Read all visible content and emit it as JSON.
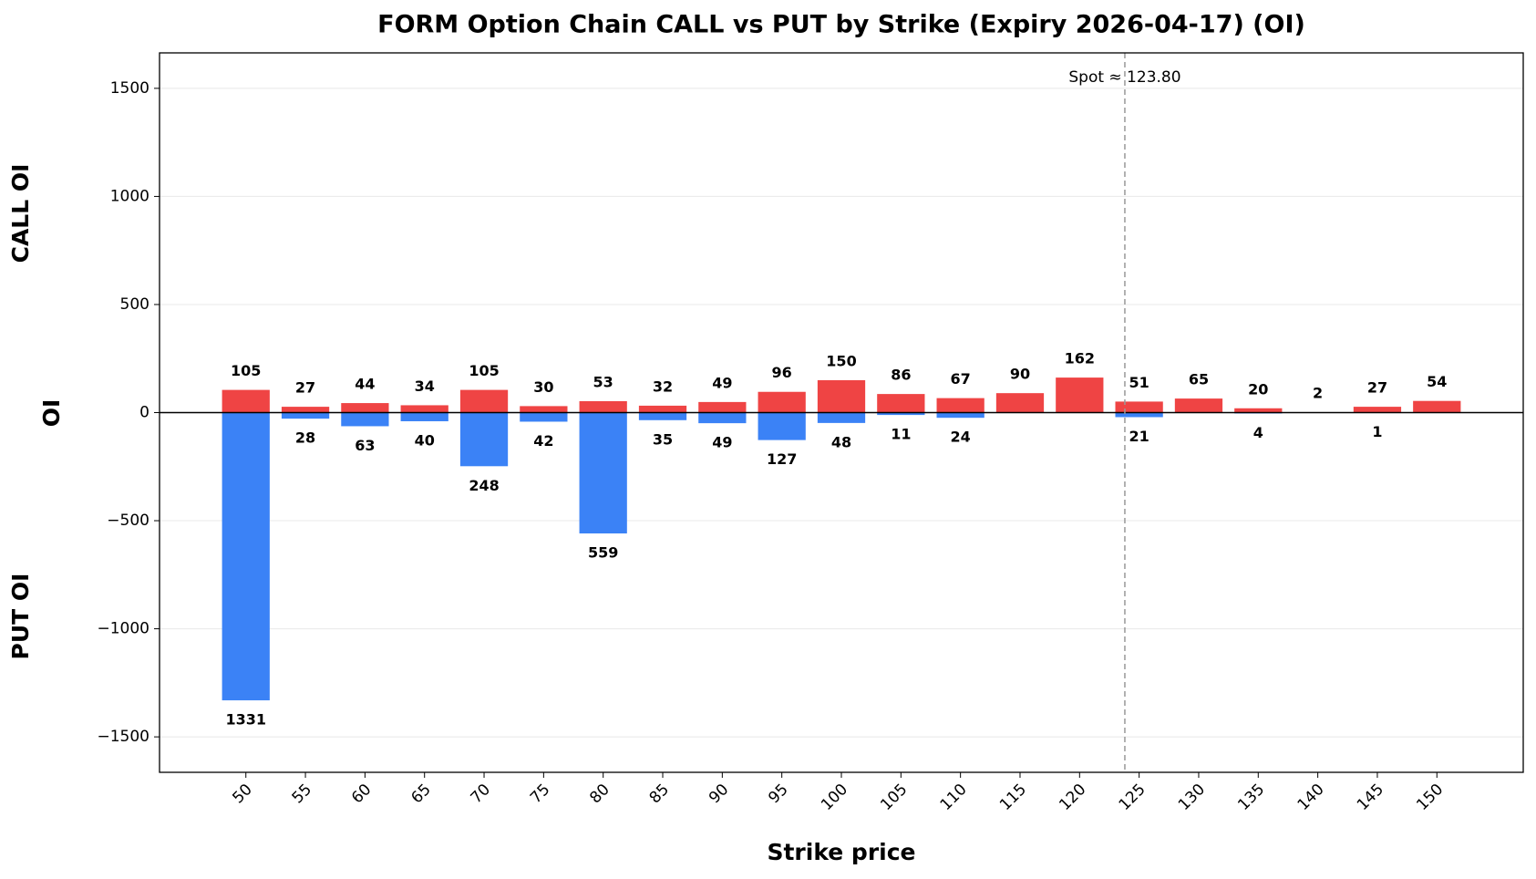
{
  "chart_data": {
    "type": "diverging-bar",
    "title": "FORM Option Chain CALL vs PUT by Strike (Expiry 2026-04-17) (OI)",
    "x_label": "Strike price",
    "y_label": "OI",
    "y_label_top": "CALL OI",
    "y_label_bottom": "PUT OI",
    "x": [
      50,
      55,
      60,
      65,
      70,
      75,
      80,
      85,
      90,
      95,
      100,
      105,
      110,
      115,
      120,
      125,
      130,
      135,
      140,
      145,
      150
    ],
    "xlim": [
      42.75,
      157.25
    ],
    "xticks": [
      50,
      55,
      60,
      65,
      70,
      75,
      80,
      85,
      90,
      95,
      100,
      105,
      110,
      115,
      120,
      125,
      130,
      135,
      140,
      145,
      150
    ],
    "ylim": [
      -1664,
      1664
    ],
    "yticks": [
      {
        "value": -1500,
        "label": "−1500"
      },
      {
        "value": -1000,
        "label": "−1000"
      },
      {
        "value": -500,
        "label": "−500"
      },
      0,
      500,
      1000,
      1500
    ],
    "grid": true,
    "series": [
      {
        "name": "CALL",
        "color": "#ef4444",
        "values": [
          105,
          27,
          44,
          34,
          105,
          30,
          53,
          32,
          49,
          96,
          150,
          86,
          67,
          90,
          162,
          51,
          65,
          20,
          2,
          27,
          54
        ]
      },
      {
        "name": "PUT",
        "color": "#3b82f6",
        "values": [
          -1331,
          -28,
          -63,
          -40,
          -248,
          -42,
          -559,
          -35,
          -49,
          -127,
          -48,
          -11,
          -24,
          null,
          null,
          -21,
          null,
          -4,
          null,
          -1,
          null
        ],
        "value_labels": [
          "1331",
          "28",
          "63",
          "40",
          "248",
          "42",
          "559",
          "35",
          "49",
          "127",
          "48",
          "11",
          "24",
          null,
          null,
          "21",
          null,
          "4",
          null,
          "1",
          null
        ]
      }
    ],
    "spot": {
      "value": 123.8,
      "label": "Spot ≈ 123.80"
    }
  }
}
